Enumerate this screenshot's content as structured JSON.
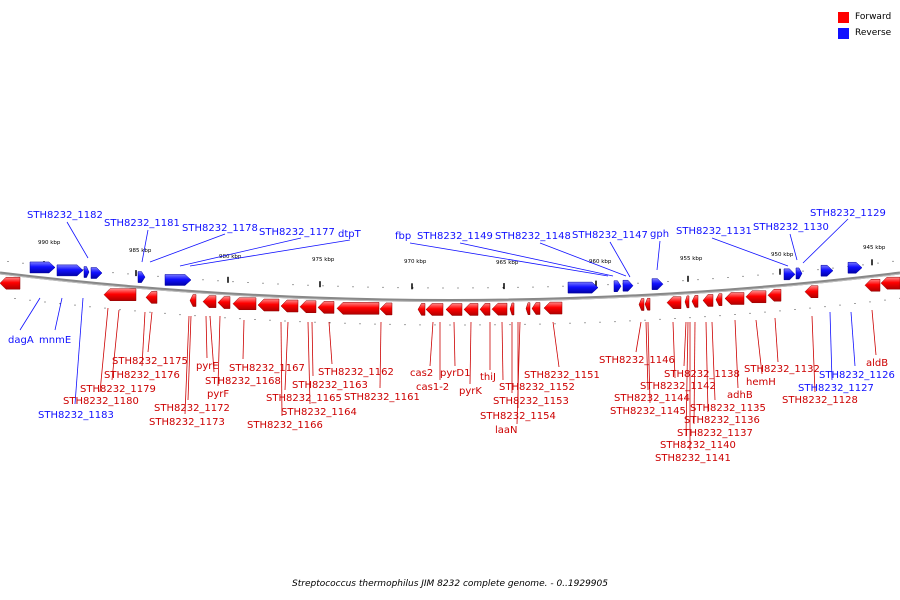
{
  "legend": {
    "items": [
      {
        "label": "Forward",
        "color": "#ff0000"
      },
      {
        "label": "Reverse",
        "color": "#1010ff"
      }
    ]
  },
  "caption": "Streptococcus thermophilus JIM 8232 complete genome. - 0..1929905",
  "colors": {
    "forward": "#ff0000",
    "reverse": "#1010ff",
    "backbone": "#888888"
  },
  "ticks": [
    "990 kbp",
    "985 kbp",
    "980 kbp",
    "975 kbp",
    "970 kbp",
    "965 kbp",
    "960 kbp",
    "955 kbp",
    "950 kbp",
    "945 kbp"
  ],
  "reverse_genes": [
    "STH8232_1182",
    "STH8232_1181",
    "STH8232_1178",
    "STH8232_1177",
    "dtpT",
    "fbp",
    "STH8232_1149",
    "STH8232_1148",
    "STH8232_1147",
    "gph",
    "STH8232_1131",
    "STH8232_1130",
    "STH8232_1129",
    "dagA",
    "mnmE",
    "STH8232_1183",
    "STH8232_1127",
    "STH8232_1126"
  ],
  "forward_genes": [
    "STH8232_1175",
    "STH8232_1176",
    "STH8232_1179",
    "STH8232_1180",
    "pyrE",
    "STH8232_1168",
    "pyrF",
    "STH8232_1172",
    "STH8232_1173",
    "STH8232_1167",
    "STH8232_1165",
    "STH8232_1166",
    "STH8232_1163",
    "STH8232_1164",
    "STH8232_1162",
    "STH8232_1161",
    "cas2",
    "cas1-2",
    "pyrD1",
    "pyrK",
    "thiJ",
    "STH8232_1152",
    "STH8232_1153",
    "STH8232_1154",
    "laaN",
    "STH8232_1151",
    "STH8232_1146",
    "STH8232_1144",
    "STH8232_1145",
    "STH8232_1142",
    "STH8232_1138",
    "STH8232_1140",
    "STH8232_1141",
    "STH8232_1137",
    "STH8232_1136",
    "STH8232_1135",
    "adhB",
    "hemH",
    "STH8232_1132",
    "STH8232_1128",
    "aldB"
  ]
}
